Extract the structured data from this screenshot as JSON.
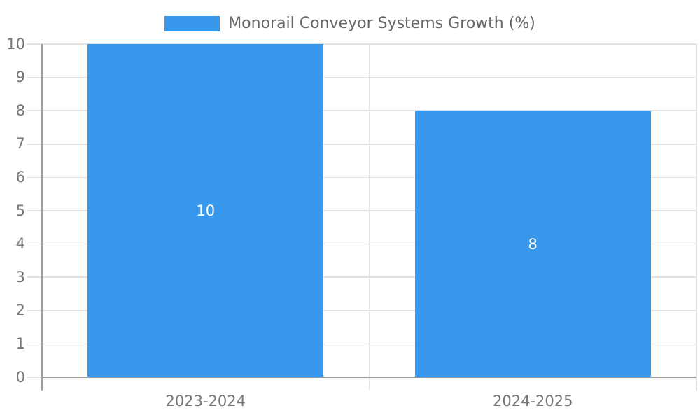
{
  "chart_data": {
    "type": "bar",
    "legend_label": "Monorail Conveyor Systems Growth (%)",
    "legend_position": "top-center",
    "categories": [
      "2023-2024",
      "2024-2025"
    ],
    "values": [
      10,
      8
    ],
    "value_labels": [
      "10",
      "8"
    ],
    "ylim": [
      0,
      10
    ],
    "yticks": [
      0,
      1,
      2,
      3,
      4,
      5,
      6,
      7,
      8,
      9,
      10
    ],
    "grid": true,
    "colors": {
      "bar": "#3898ec",
      "grid": "#e3e3e3",
      "axis": "#9e9e9e",
      "tick_label": "#757575",
      "legend_text": "#666666",
      "value_label": "#ffffff",
      "background": "#ffffff"
    }
  }
}
